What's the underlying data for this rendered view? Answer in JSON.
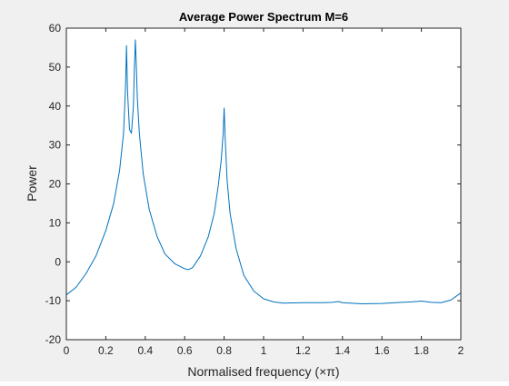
{
  "chart_data": {
    "type": "line",
    "title": "Average Power Spectrum M=6",
    "xlabel": "Normalised frequency (×π)",
    "ylabel": "Power",
    "xlim": [
      0,
      2
    ],
    "ylim": [
      -20,
      60
    ],
    "x_ticks": [
      "0",
      "0.2",
      "0.4",
      "0.6",
      "0.8",
      "1",
      "1.2",
      "1.4",
      "1.6",
      "1.8",
      "2"
    ],
    "y_ticks": [
      "-20",
      "-10",
      "0",
      "10",
      "20",
      "30",
      "40",
      "50",
      "60"
    ],
    "grid": false,
    "line_color": "#0072bd",
    "series": [
      {
        "x": [
          0.0,
          0.05,
          0.1,
          0.15,
          0.2,
          0.24,
          0.27,
          0.29,
          0.3,
          0.305,
          0.31,
          0.32,
          0.33,
          0.34,
          0.345,
          0.35,
          0.355,
          0.36,
          0.37,
          0.39,
          0.42,
          0.46,
          0.5,
          0.55,
          0.6,
          0.62,
          0.64,
          0.68,
          0.72,
          0.75,
          0.77,
          0.785,
          0.795,
          0.8,
          0.805,
          0.815,
          0.83,
          0.86,
          0.9,
          0.95,
          1.0,
          1.05,
          1.1,
          1.2,
          1.3,
          1.35,
          1.38,
          1.4,
          1.5,
          1.6,
          1.7,
          1.75,
          1.8,
          1.85,
          1.9,
          1.95,
          2.0
        ],
        "y": [
          -8.5,
          -6.5,
          -3.0,
          1.5,
          8.0,
          15.0,
          23.5,
          33.0,
          45.0,
          55.5,
          44.0,
          34.0,
          33.0,
          40.0,
          50.0,
          57.0,
          50.0,
          42.0,
          33.0,
          22.5,
          13.5,
          6.5,
          2.0,
          -0.5,
          -1.8,
          -2.0,
          -1.5,
          1.5,
          6.5,
          12.5,
          19.5,
          26.0,
          33.0,
          39.5,
          32.0,
          21.0,
          12.5,
          3.5,
          -3.5,
          -7.5,
          -9.5,
          -10.3,
          -10.6,
          -10.5,
          -10.5,
          -10.4,
          -10.2,
          -10.5,
          -10.8,
          -10.7,
          -10.4,
          -10.3,
          -10.1,
          -10.4,
          -10.5,
          -9.8,
          -8.0
        ]
      }
    ]
  }
}
